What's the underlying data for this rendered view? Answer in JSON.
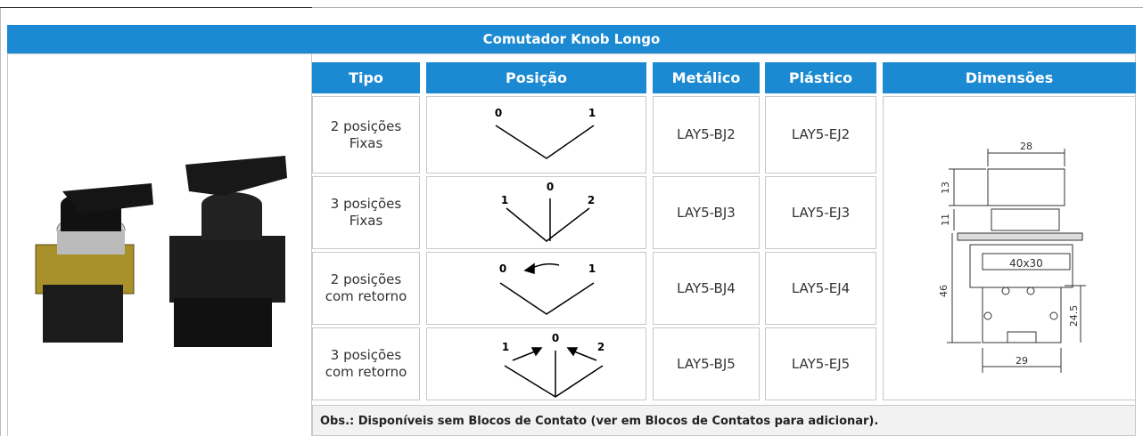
{
  "header": {
    "title": "Comutador Knob  Longo"
  },
  "table": {
    "columns": [
      "Tipo",
      "Posição",
      "Metálico",
      "Plástico",
      "Dimensões"
    ],
    "rows": [
      {
        "tipo": [
          "2 posições",
          "Fixas"
        ],
        "position_labels": [
          "0",
          "1"
        ],
        "metalico": "LAY5-BJ2",
        "plastico": "LAY5-EJ2"
      },
      {
        "tipo": [
          "3 posições",
          "Fixas"
        ],
        "position_labels": [
          "1",
          "0",
          "2"
        ],
        "metalico": "LAY5-BJ3",
        "plastico": "LAY5-EJ3"
      },
      {
        "tipo": [
          "2 posições",
          "com retorno"
        ],
        "position_labels": [
          "0",
          "1"
        ],
        "metalico": "LAY5-BJ4",
        "plastico": "LAY5-EJ4"
      },
      {
        "tipo": [
          "3 posições",
          "com retorno"
        ],
        "position_labels": [
          "1",
          "0",
          "2"
        ],
        "metalico": "LAY5-BJ5",
        "plastico": "LAY5-EJ5"
      }
    ],
    "dimensions": [
      "28",
      "13",
      "11",
      "40x30",
      "46",
      "24.5",
      "29"
    ],
    "note": "Obs.: Disponíveis sem Blocos de Contato (ver em Blocos de Contatos para adicionar)."
  }
}
